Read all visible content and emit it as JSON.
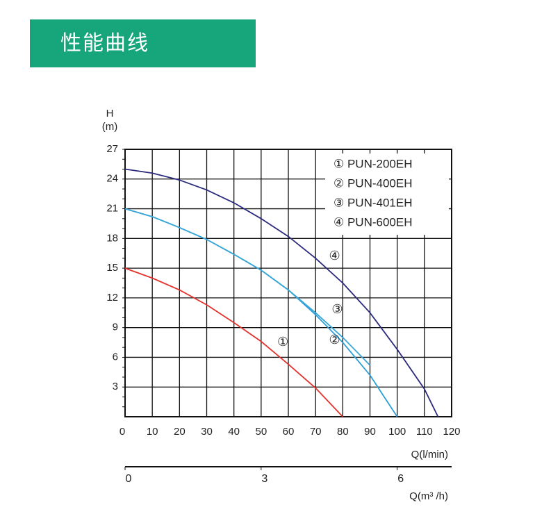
{
  "header": {
    "title": "性能曲线"
  },
  "chart_data": {
    "type": "line",
    "y_label": "H",
    "y_unit": "(m)",
    "x_label": "Q(l/min)",
    "x2_label": "Q(m³ /h)",
    "x": [
      0,
      10,
      20,
      30,
      40,
      50,
      60,
      70,
      80,
      90,
      100,
      110,
      115
    ],
    "series": [
      {
        "name": "① PUN-200EH",
        "color": "#e3322e",
        "values": [
          15,
          14,
          12.8,
          11.3,
          9.5,
          7.6,
          5.3,
          2.9,
          0,
          null,
          null,
          null,
          null
        ]
      },
      {
        "name": "② PUN-400EH",
        "color": "#2a9fd6",
        "values": [
          21,
          20.2,
          19.1,
          17.9,
          16.4,
          14.8,
          12.8,
          10.3,
          7.5,
          4.2,
          0,
          null,
          null
        ]
      },
      {
        "name": "③ PUN-401EH",
        "color": "#38a6d6",
        "values": [
          21,
          20.2,
          19.1,
          17.9,
          16.4,
          14.8,
          12.8,
          10.5,
          8,
          5.2,
          null,
          null,
          null
        ]
      },
      {
        "name": "④ PUN-600EH",
        "color": "#2b2a7c",
        "values": [
          25,
          24.6,
          23.9,
          22.9,
          21.6,
          20,
          18.2,
          16,
          13.5,
          10.5,
          6.8,
          2.8,
          0
        ]
      }
    ],
    "annotations": [
      "①",
      "②",
      "③",
      "④"
    ],
    "xlim": [
      0,
      120
    ],
    "xticks": [
      0,
      10,
      20,
      30,
      40,
      50,
      60,
      70,
      80,
      90,
      100,
      110,
      120
    ],
    "ylim": [
      0,
      27
    ],
    "yticks": [
      3,
      6,
      9,
      12,
      15,
      18,
      21,
      24,
      27
    ],
    "x2lim": [
      0,
      7.2
    ],
    "x2ticks": [
      0,
      3,
      6
    ],
    "grid": true,
    "legend": "upper right"
  }
}
